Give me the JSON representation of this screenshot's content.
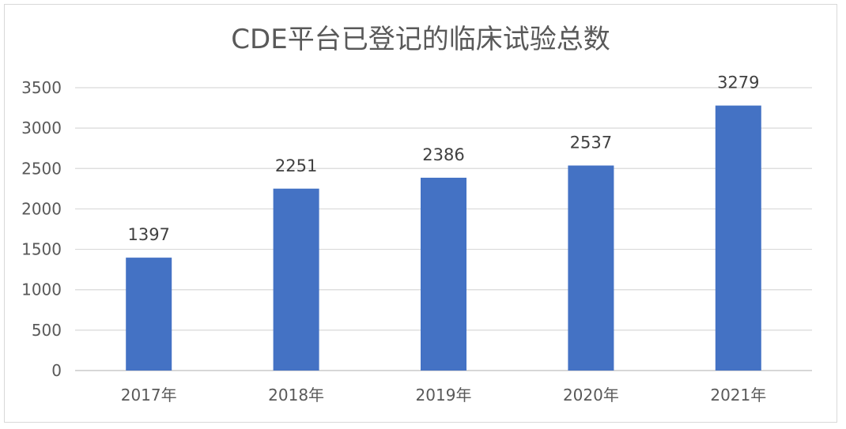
{
  "chart_data": {
    "type": "bar",
    "title": "CDE平台已登记的临床试验总数",
    "categories": [
      "2017年",
      "2018年",
      "2019年",
      "2020年",
      "2021年"
    ],
    "values": [
      1397,
      2251,
      2386,
      2537,
      3279
    ],
    "data_labels": [
      "1397",
      "2251",
      "2386",
      "2537",
      "3279"
    ],
    "y_ticks": [
      "0",
      "500",
      "1000",
      "1500",
      "2000",
      "2500",
      "3000",
      "3500"
    ],
    "ylim": [
      0,
      3500
    ],
    "grid": true,
    "legend": "none",
    "bar_color": "#4472c4",
    "grid_color": "#d9d9d9"
  }
}
